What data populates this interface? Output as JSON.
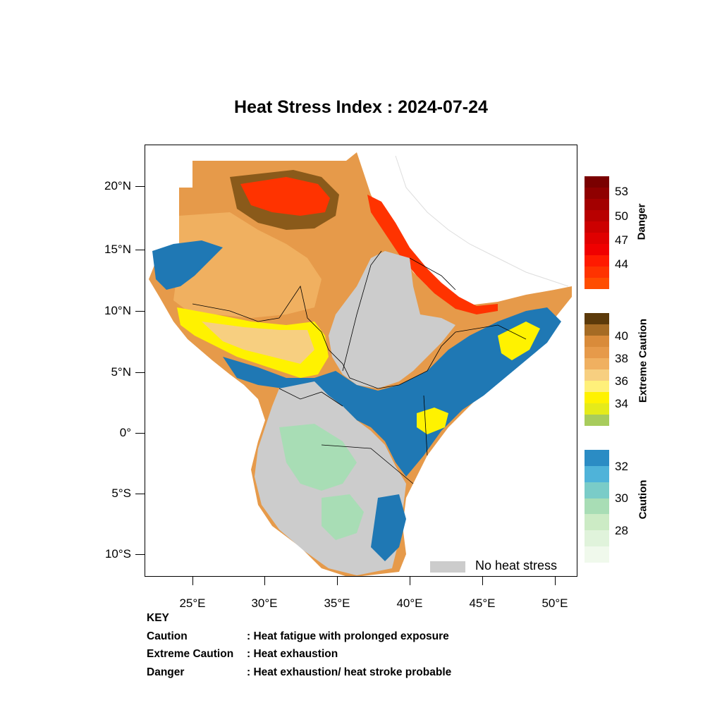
{
  "title": "Heat Stress Index : 2024-07-24",
  "y_axis_labels": [
    "20°N",
    "15°N",
    "10°N",
    "5°N",
    "0°",
    "5°S",
    "10°S"
  ],
  "x_axis_labels": [
    "25°E",
    "30°E",
    "35°E",
    "40°E",
    "45°E",
    "50°E"
  ],
  "legend": {
    "label": "No heat stress",
    "color": "#cccccc"
  },
  "colorbars": {
    "danger": {
      "title": "Danger",
      "labels": [
        "53",
        "50",
        "47",
        "44"
      ],
      "colors": [
        "#7a0000",
        "#8f0000",
        "#a30000",
        "#b80000",
        "#cc0000",
        "#e00000",
        "#f00000",
        "#ff1a00",
        "#ff3300",
        "#ff4d00"
      ]
    },
    "extreme": {
      "title": "Extreme Caution",
      "labels": [
        "40",
        "38",
        "36",
        "34"
      ],
      "colors": [
        "#5c3a0a",
        "#a56b24",
        "#d98b3a",
        "#e69a4a",
        "#f0b060",
        "#f7cf80",
        "#fff07a",
        "#fff200",
        "#e5eb1a",
        "#a8cc5c"
      ]
    },
    "caution": {
      "title": "Caution",
      "labels": [
        "32",
        "30",
        "28"
      ],
      "colors": [
        "#2b8cc4",
        "#4fb3d9",
        "#7accc8",
        "#a8ddb5",
        "#ccebc5",
        "#e0f3db",
        "#f0f9ec"
      ]
    }
  },
  "key": {
    "heading": "KEY",
    "rows": [
      {
        "term": "Caution",
        "desc": ": Heat fatigue with prolonged exposure"
      },
      {
        "term": "Extreme Caution",
        "desc": " : Heat exhaustion"
      },
      {
        "term": "Danger",
        "desc": ": Heat exhaustion/ heat stroke probable"
      }
    ]
  },
  "colors": {
    "no_heat_stress": "#cccccc",
    "danger_core": "#ff3300",
    "extreme_brown": "#8a5a1a",
    "extreme_orange": "#e69a4a",
    "extreme_light": "#f7cf80",
    "yellow": "#fff200",
    "caution_blue": "#1f78b4",
    "caution_green": "#a8ddb5"
  }
}
